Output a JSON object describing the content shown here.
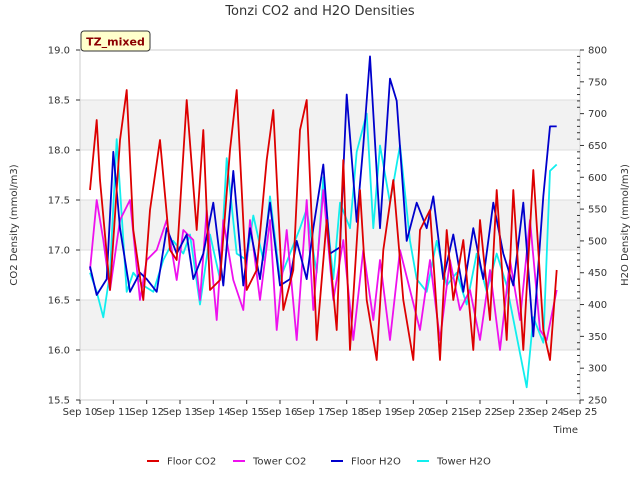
{
  "chart_data": {
    "type": "line",
    "title": "Tonzi CO2 and H2O Densities",
    "xlabel": "Time",
    "ylabel_left": "CO2 Density (mmol/m3)",
    "ylabel_right": "H2O Density (mmol/m3)",
    "badge": "TZ_mixed",
    "x_ticks": [
      "Sep 10",
      "Sep 11",
      "Sep 12",
      "Sep 13",
      "Sep 14",
      "Sep 15",
      "Sep 16",
      "Sep 17",
      "Sep 18",
      "Sep 19",
      "Sep 20",
      "Sep 21",
      "Sep 22",
      "Sep 23",
      "Sep 24",
      "Sep 25"
    ],
    "x_range": [
      10,
      25
    ],
    "y_left_range": [
      15.5,
      19.0
    ],
    "y_left_ticks": [
      "15.5",
      "16.0",
      "16.5",
      "17.0",
      "17.5",
      "18.0",
      "18.5",
      "19.0"
    ],
    "y_right_range": [
      250,
      800
    ],
    "y_right_ticks": [
      "250",
      "300",
      "350",
      "400",
      "450",
      "500",
      "550",
      "600",
      "650",
      "700",
      "750",
      "800"
    ],
    "series": [
      {
        "name": "Floor CO2",
        "axis": "left",
        "color": "#dd0000",
        "x": [
          10.3,
          10.5,
          10.6,
          10.9,
          11.2,
          11.4,
          11.6,
          11.9,
          12.1,
          12.4,
          12.7,
          12.9,
          13.2,
          13.5,
          13.7,
          13.9,
          14.2,
          14.5,
          14.7,
          15.0,
          15.3,
          15.6,
          15.8,
          16.1,
          16.4,
          16.6,
          16.8,
          17.1,
          17.4,
          17.7,
          17.9,
          18.1,
          18.4,
          18.6,
          18.9,
          19.1,
          19.4,
          19.7,
          20.0,
          20.2,
          20.5,
          20.8,
          21.0,
          21.2,
          21.5,
          21.8,
          22.0,
          22.3,
          22.5,
          22.8,
          23.0,
          23.3,
          23.6,
          23.9,
          24.1,
          24.3
        ],
        "y": [
          17.6,
          18.3,
          17.7,
          16.6,
          18.1,
          18.6,
          17.2,
          16.5,
          17.4,
          18.1,
          17.0,
          16.9,
          18.5,
          17.2,
          18.2,
          16.6,
          16.7,
          18.0,
          18.6,
          16.6,
          16.8,
          17.9,
          18.4,
          16.4,
          16.8,
          18.2,
          18.5,
          16.1,
          17.3,
          16.2,
          17.9,
          16.0,
          17.6,
          16.5,
          15.9,
          17.0,
          17.7,
          16.5,
          15.9,
          17.2,
          17.4,
          15.9,
          17.2,
          16.5,
          17.1,
          16.0,
          17.3,
          16.3,
          17.6,
          16.1,
          17.6,
          16.0,
          17.8,
          16.2,
          15.9,
          16.8
        ]
      },
      {
        "name": "Tower CO2",
        "axis": "left",
        "color": "#ee11ee",
        "x": [
          10.3,
          10.5,
          10.7,
          10.9,
          11.2,
          11.5,
          11.8,
          12.0,
          12.3,
          12.6,
          12.9,
          13.1,
          13.4,
          13.6,
          13.8,
          14.1,
          14.3,
          14.6,
          14.9,
          15.1,
          15.4,
          15.7,
          15.9,
          16.2,
          16.5,
          16.8,
          17.0,
          17.3,
          17.6,
          17.9,
          18.2,
          18.5,
          18.8,
          19.0,
          19.3,
          19.6,
          19.9,
          20.2,
          20.5,
          20.8,
          21.1,
          21.4,
          21.7,
          22.0,
          22.3,
          22.6,
          22.9,
          23.2,
          23.5,
          23.8,
          24.0,
          24.3
        ],
        "y": [
          16.8,
          17.5,
          17.1,
          16.6,
          17.3,
          17.5,
          16.5,
          16.9,
          17.0,
          17.3,
          16.7,
          17.2,
          17.1,
          16.5,
          17.4,
          16.3,
          17.3,
          16.7,
          16.4,
          17.3,
          16.5,
          17.3,
          16.2,
          17.2,
          16.1,
          17.5,
          16.4,
          17.6,
          16.5,
          17.1,
          16.1,
          17.0,
          16.3,
          16.9,
          16.1,
          17.0,
          16.6,
          16.2,
          16.9,
          16.1,
          16.9,
          16.4,
          16.6,
          16.1,
          16.8,
          16.0,
          16.9,
          16.3,
          17.3,
          16.2,
          16.1,
          16.6
        ]
      },
      {
        "name": "Floor H2O",
        "axis": "right",
        "color": "#0000cc",
        "x": [
          10.3,
          10.5,
          10.8,
          11.0,
          11.2,
          11.5,
          11.8,
          12.0,
          12.3,
          12.6,
          12.9,
          13.2,
          13.4,
          13.7,
          14.0,
          14.3,
          14.6,
          14.9,
          15.1,
          15.4,
          15.7,
          16.0,
          16.3,
          16.5,
          16.8,
          17.0,
          17.3,
          17.5,
          17.8,
          18.0,
          18.3,
          18.5,
          18.7,
          19.0,
          19.3,
          19.5,
          19.8,
          20.1,
          20.4,
          20.6,
          20.9,
          21.2,
          21.5,
          21.8,
          22.1,
          22.4,
          22.7,
          23.0,
          23.3,
          23.6,
          23.9,
          24.1,
          24.3
        ],
        "y": [
          460,
          415,
          440,
          640,
          520,
          420,
          450,
          440,
          420,
          520,
          480,
          510,
          440,
          480,
          560,
          430,
          610,
          430,
          520,
          440,
          560,
          430,
          440,
          500,
          440,
          520,
          620,
          480,
          490,
          730,
          530,
          650,
          790,
          520,
          755,
          720,
          500,
          560,
          520,
          570,
          440,
          510,
          420,
          520,
          440,
          560,
          480,
          430,
          560,
          350,
          570,
          680,
          680
        ]
      },
      {
        "name": "Tower H2O",
        "axis": "right",
        "color": "#11eeee",
        "x": [
          10.3,
          10.5,
          10.7,
          10.9,
          11.1,
          11.4,
          11.6,
          11.9,
          12.2,
          12.5,
          12.8,
          13.1,
          13.3,
          13.6,
          13.9,
          14.2,
          14.4,
          14.7,
          15.0,
          15.2,
          15.5,
          15.7,
          16.0,
          16.3,
          16.6,
          16.8,
          17.1,
          17.3,
          17.6,
          17.8,
          18.1,
          18.3,
          18.6,
          18.8,
          19.0,
          19.3,
          19.6,
          19.9,
          20.1,
          20.4,
          20.7,
          21.0,
          21.3,
          21.6,
          21.9,
          22.2,
          22.5,
          22.8,
          23.1,
          23.4,
          23.6,
          23.9,
          24.1,
          24.3
        ],
        "y": [
          450,
          420,
          380,
          450,
          660,
          420,
          450,
          430,
          420,
          470,
          500,
          480,
          510,
          400,
          510,
          440,
          630,
          480,
          470,
          540,
          470,
          570,
          440,
          480,
          520,
          550,
          450,
          600,
          440,
          560,
          520,
          640,
          700,
          520,
          650,
          560,
          650,
          500,
          440,
          420,
          500,
          430,
          450,
          400,
          480,
          420,
          480,
          430,
          350,
          270,
          380,
          340,
          610,
          620
        ]
      }
    ]
  }
}
